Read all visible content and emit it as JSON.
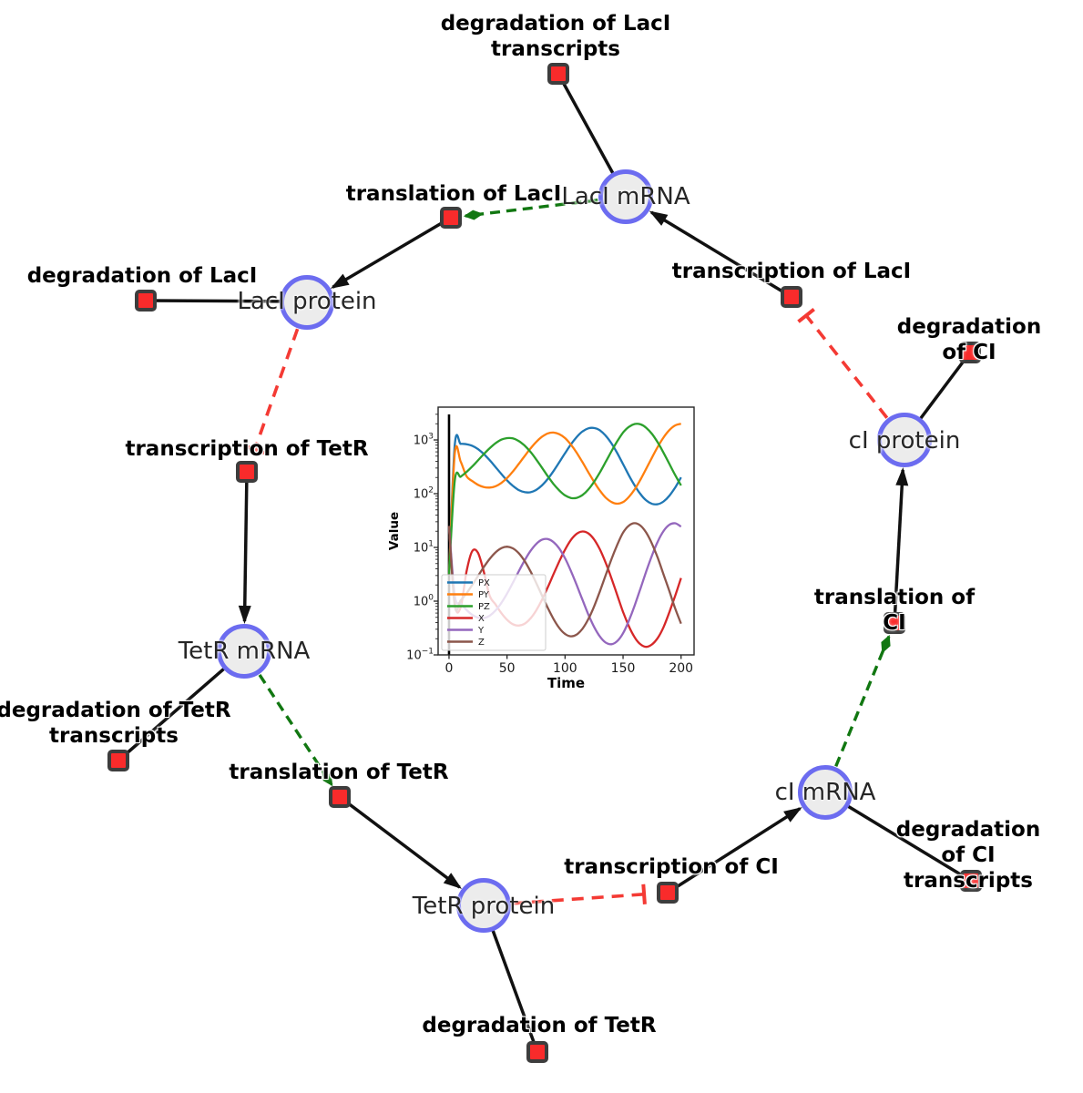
{
  "figure": {
    "background": "#ffffff",
    "colors": {
      "species_fill": "#ececec",
      "species_border": "#6c6cf0",
      "reaction_fill": "#f92b2b",
      "reaction_border": "#3d3d3d",
      "edge_black": "#111111",
      "edge_modifier_green": "#117711",
      "edge_inhibition_red": "#f43a34"
    }
  },
  "network": {
    "species": [
      {
        "label": "LacI mRNA"
      },
      {
        "label": "LacI protein"
      },
      {
        "label": "TetR mRNA"
      },
      {
        "label": "TetR protein"
      },
      {
        "label": "cI mRNA"
      },
      {
        "label": "cI protein"
      }
    ],
    "reactions": [
      {
        "label": "degradation of LacI\ntranscripts"
      },
      {
        "label": "translation of LacI"
      },
      {
        "label": "degradation of LacI"
      },
      {
        "label": "transcription of LacI"
      },
      {
        "label": "degradation of CI"
      },
      {
        "label": "transcription of TetR"
      },
      {
        "label": "degradation of TetR\ntranscripts"
      },
      {
        "label": "translation of TetR"
      },
      {
        "label": "translation of CI"
      },
      {
        "label": "transcription of CI"
      },
      {
        "label": "degradation of CI\ntranscripts"
      },
      {
        "label": "degradation of TetR"
      }
    ]
  },
  "chart_data": {
    "type": "line",
    "title": "",
    "xlabel": "Time",
    "ylabel": "Value",
    "x_ticks": [
      0,
      50,
      100,
      150,
      200
    ],
    "xlim": [
      -9.4,
      211.2
    ],
    "y_scale": "log",
    "y_tick_exponents": [
      -1,
      0,
      1,
      2,
      3
    ],
    "ylim_exponents": [
      -1,
      3.6
    ],
    "grid": false,
    "legend_position": "lower left",
    "vline_x": 0,
    "x": [
      0,
      5,
      10,
      15,
      20,
      25,
      30,
      35,
      40,
      45,
      50,
      55,
      60,
      65,
      70,
      75,
      80,
      85,
      90,
      95,
      100,
      105,
      110,
      115,
      120,
      125,
      130,
      135,
      140,
      145,
      150,
      155,
      160,
      165,
      170,
      175,
      180,
      185,
      190,
      195,
      200
    ],
    "series": [
      {
        "name": "PX",
        "color": "#1f77b4",
        "values": [
          3.2,
          811,
          845,
          832,
          778,
          673,
          546,
          421,
          315,
          234,
          177,
          140,
          117,
          107,
          106,
          117,
          142,
          187,
          262,
          384,
          567,
          821,
          1130,
          1440,
          1640,
          1670,
          1510,
          1200,
          861,
          567,
          355,
          220,
          142,
          98,
          74.8,
          64.7,
          63.8,
          71.9,
          92,
          131,
          201
        ]
      },
      {
        "name": "PY",
        "color": "#ff7f0e",
        "values": [
          3.2,
          562,
          398,
          212,
          172,
          146,
          133,
          130,
          137,
          158,
          196,
          258,
          355,
          495,
          685,
          912,
          1140,
          1320,
          1370,
          1280,
          1080,
          821,
          578,
          386,
          252,
          166,
          114,
          84.7,
          70,
          65.2,
          69.5,
          86.9,
          120,
          183,
          292,
          473,
          752,
          1120,
          1530,
          1870,
          2000
        ]
      },
      {
        "name": "PZ",
        "color": "#2ca02c",
        "values": [
          3.2,
          176,
          207,
          253,
          320,
          417,
          546,
          700,
          865,
          1010,
          1080,
          1070,
          959,
          791,
          607,
          438,
          307,
          213,
          152,
          115,
          93,
          83.4,
          83.7,
          94.4,
          119,
          166,
          248,
          389,
          615,
          946,
          1370,
          1750,
          1980,
          1950,
          1680,
          1290,
          889,
          573,
          355,
          220,
          142
        ]
      },
      {
        "name": "X",
        "color": "#d62728",
        "values": [
          25,
          0.9,
          0.76,
          3.5,
          8.5,
          7.9,
          3.5,
          1.26,
          0.875,
          0.604,
          0.451,
          0.373,
          0.351,
          0.378,
          0.47,
          0.665,
          1.05,
          1.78,
          3.15,
          5.5,
          9.12,
          13.7,
          17.9,
          19.8,
          18.3,
          14.1,
          9.2,
          5.21,
          2.66,
          1.29,
          0.632,
          0.342,
          0.212,
          0.157,
          0.141,
          0.157,
          0.208,
          0.332,
          0.632,
          1.28,
          2.69
        ]
      },
      {
        "name": "Y",
        "color": "#9467bd",
        "values": [
          25,
          1.26,
          0.91,
          0.69,
          0.557,
          0.493,
          0.485,
          0.536,
          0.667,
          0.921,
          1.38,
          2.19,
          3.56,
          5.65,
          8.47,
          11.5,
          13.9,
          14.3,
          12.6,
          9.55,
          6.25,
          3.67,
          2.0,
          1.06,
          0.571,
          0.333,
          0.22,
          0.17,
          0.158,
          0.181,
          0.252,
          0.432,
          0.832,
          1.72,
          3.59,
          7.16,
          13.0,
          20.3,
          26.4,
          28.1,
          24.3
        ]
      },
      {
        "name": "Z",
        "color": "#8c564b",
        "values": [
          25,
          0.815,
          1.03,
          1.39,
          2.0,
          2.94,
          4.32,
          6.11,
          8.05,
          9.66,
          10.3,
          9.6,
          7.84,
          5.65,
          3.67,
          2.22,
          1.29,
          0.76,
          0.469,
          0.317,
          0.245,
          0.222,
          0.239,
          0.307,
          0.46,
          0.794,
          1.52,
          3.03,
          6.03,
          11.2,
          18.8,
          25.4,
          28.2,
          25.4,
          18.8,
          11.6,
          6.3,
          3.1,
          1.52,
          0.721,
          0.381
        ]
      }
    ]
  }
}
